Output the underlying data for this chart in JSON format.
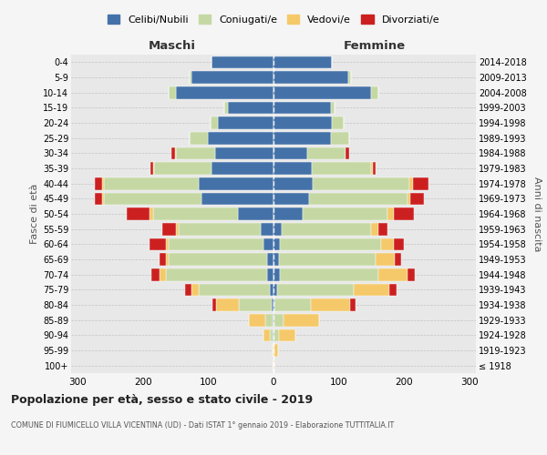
{
  "age_groups": [
    "100+",
    "95-99",
    "90-94",
    "85-89",
    "80-84",
    "75-79",
    "70-74",
    "65-69",
    "60-64",
    "55-59",
    "50-54",
    "45-49",
    "40-44",
    "35-39",
    "30-34",
    "25-29",
    "20-24",
    "15-19",
    "10-14",
    "5-9",
    "0-4"
  ],
  "birth_years": [
    "≤ 1918",
    "1919-1923",
    "1924-1928",
    "1929-1933",
    "1934-1938",
    "1939-1943",
    "1944-1948",
    "1949-1953",
    "1954-1958",
    "1959-1963",
    "1964-1968",
    "1969-1973",
    "1974-1978",
    "1979-1983",
    "1984-1988",
    "1989-1993",
    "1994-1998",
    "1999-2003",
    "2004-2008",
    "2009-2013",
    "2014-2018"
  ],
  "colors": {
    "celibi": "#4472a8",
    "coniugati": "#c5d8a4",
    "vedovi": "#f5c96a",
    "divorziati": "#cc2020"
  },
  "maschi": {
    "celibi": [
      0,
      0,
      1,
      1,
      3,
      5,
      10,
      10,
      15,
      20,
      55,
      110,
      115,
      95,
      90,
      100,
      85,
      70,
      150,
      125,
      95
    ],
    "coniugati": [
      0,
      0,
      5,
      12,
      50,
      110,
      155,
      150,
      145,
      125,
      130,
      150,
      145,
      88,
      60,
      28,
      12,
      5,
      10,
      4,
      0
    ],
    "vedovi": [
      0,
      2,
      10,
      25,
      35,
      10,
      10,
      5,
      5,
      5,
      5,
      3,
      2,
      1,
      1,
      0,
      0,
      0,
      0,
      0,
      0
    ],
    "divorziati": [
      0,
      0,
      0,
      0,
      5,
      10,
      12,
      10,
      25,
      20,
      35,
      10,
      12,
      5,
      5,
      0,
      0,
      0,
      0,
      0,
      0
    ]
  },
  "femmine": {
    "celibi": [
      0,
      0,
      0,
      0,
      2,
      5,
      10,
      8,
      10,
      12,
      45,
      55,
      60,
      58,
      52,
      88,
      90,
      88,
      150,
      115,
      90
    ],
    "coniugati": [
      0,
      2,
      8,
      15,
      55,
      118,
      150,
      148,
      155,
      138,
      130,
      150,
      148,
      92,
      58,
      28,
      18,
      5,
      10,
      4,
      0
    ],
    "vedovi": [
      2,
      5,
      25,
      55,
      60,
      55,
      45,
      30,
      20,
      10,
      10,
      5,
      5,
      2,
      1,
      0,
      0,
      0,
      0,
      0,
      0
    ],
    "divorziati": [
      0,
      0,
      0,
      0,
      8,
      10,
      12,
      10,
      15,
      15,
      30,
      20,
      25,
      5,
      5,
      0,
      0,
      0,
      0,
      0,
      0
    ]
  },
  "title": "Popolazione per età, sesso e stato civile - 2019",
  "subtitle": "COMUNE DI FIUMICELLO VILLA VICENTINA (UD) - Dati ISTAT 1° gennaio 2019 - Elaborazione TUTTITALIA.IT",
  "xlabel_left": "Maschi",
  "xlabel_right": "Femmine",
  "ylabel_left": "Fasce di età",
  "ylabel_right": "Anni di nascita",
  "xlim": 310,
  "bg_color": "#f5f5f5",
  "plot_bg": "#e8e8e8",
  "legend_labels": [
    "Celibi/Nubili",
    "Coniugati/e",
    "Vedovi/e",
    "Divorziati/e"
  ]
}
